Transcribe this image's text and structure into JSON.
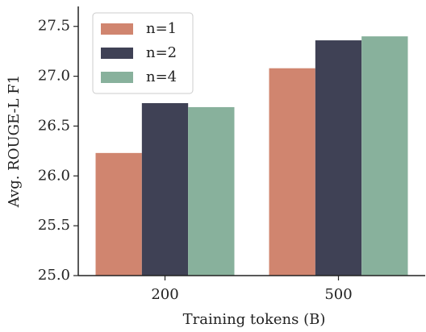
{
  "chart_data": {
    "type": "grouped-bar",
    "x_label": "Training tokens (B)",
    "y_label": "Avg. ROUGE-L F1",
    "categories": [
      "200",
      "500"
    ],
    "series": [
      {
        "name": "n=1",
        "color": "#d0856f",
        "values": [
          26.23,
          27.08
        ]
      },
      {
        "name": "n=2",
        "color": "#3f4155",
        "values": [
          26.73,
          27.36
        ]
      },
      {
        "name": "n=4",
        "color": "#88b19c",
        "values": [
          26.69,
          27.4
        ]
      }
    ],
    "ylim": [
      25,
      27.7
    ],
    "yticks": [
      {
        "value": 25,
        "label": "25.0"
      },
      {
        "value": 25.5,
        "label": "25.5"
      },
      {
        "value": 26,
        "label": "26.0"
      },
      {
        "value": 26.5,
        "label": "26.5"
      },
      {
        "value": 27,
        "label": "27.0"
      },
      {
        "value": 27.5,
        "label": "27.5"
      }
    ],
    "legend": "upper-left"
  }
}
